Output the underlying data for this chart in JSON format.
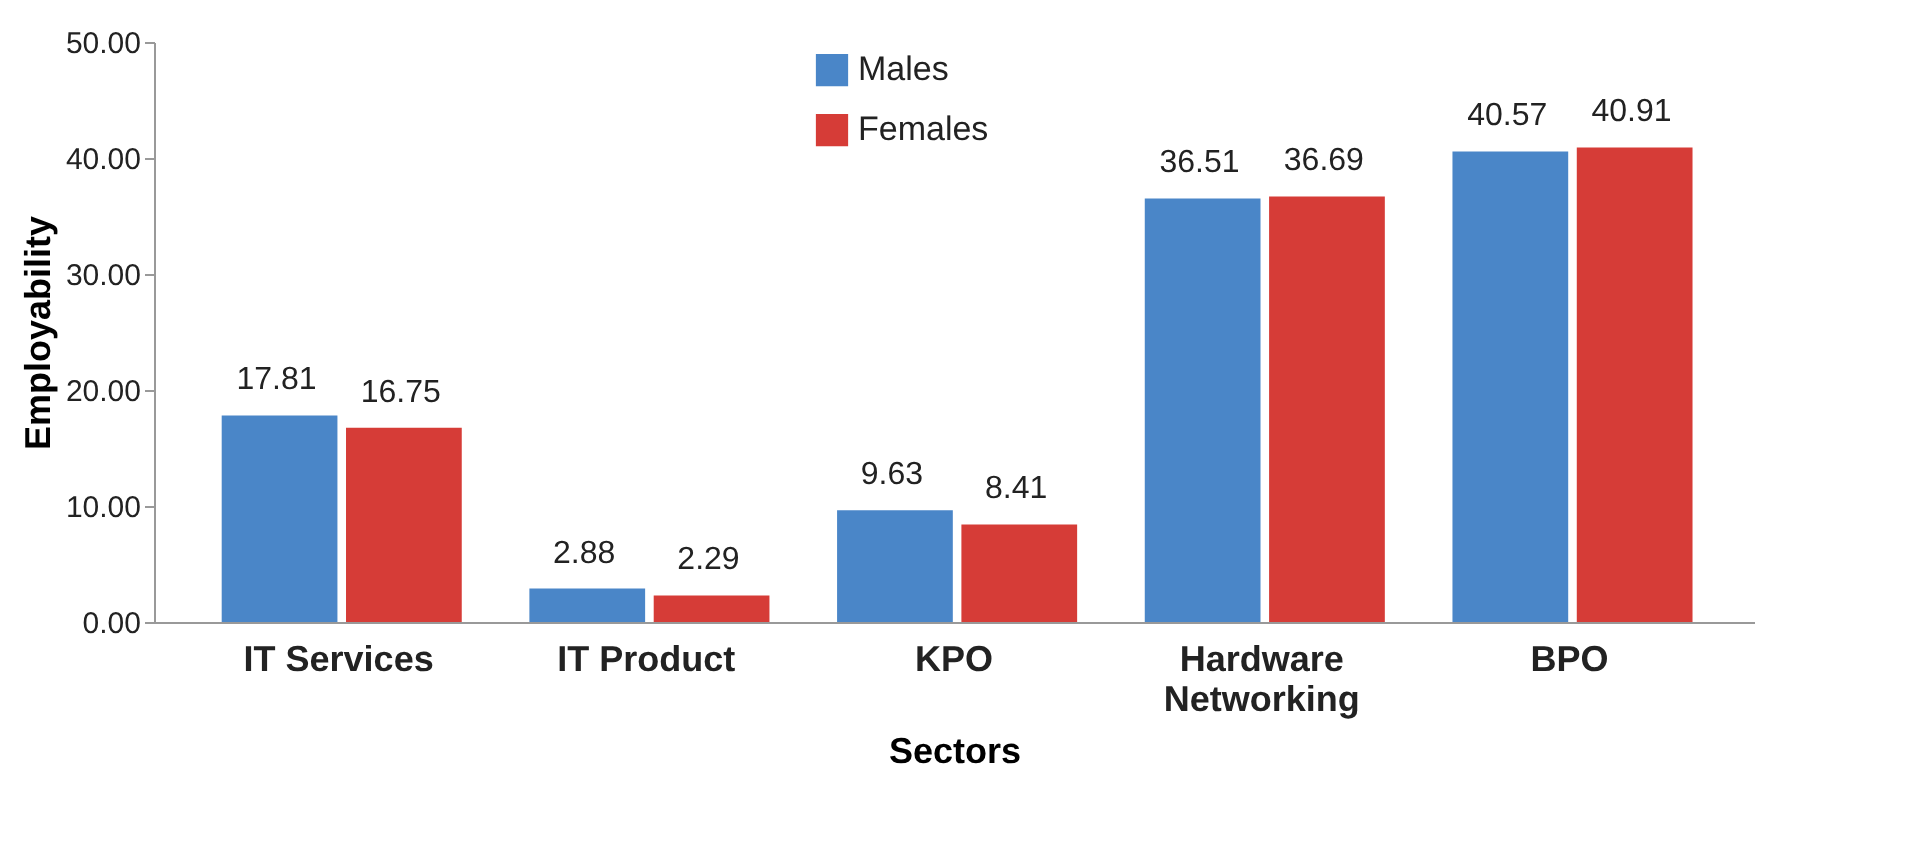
{
  "chart_data": {
    "type": "bar",
    "xlabel": "Sectors",
    "ylabel": "Employability",
    "categories": [
      "IT Services",
      "IT Product",
      "KPO",
      "Hardware Networking",
      "BPO"
    ],
    "series": [
      {
        "name": "Males",
        "color": "#4a86c8",
        "values": [
          17.81,
          2.88,
          9.63,
          36.51,
          40.57
        ]
      },
      {
        "name": "Females",
        "color": "#d63c37",
        "values": [
          16.75,
          2.29,
          8.41,
          36.69,
          40.91
        ]
      }
    ],
    "ylim": [
      0,
      50
    ],
    "yticks": [
      {
        "value": 0,
        "label": "0.00"
      },
      {
        "value": 10,
        "label": "10.00"
      },
      {
        "value": 20,
        "label": "20.00"
      },
      {
        "value": 30,
        "label": "30.00"
      },
      {
        "value": 40,
        "label": "40.00"
      },
      {
        "value": 50,
        "label": "50.00"
      }
    ],
    "data_labels": true,
    "legend": "top",
    "grid": false
  }
}
